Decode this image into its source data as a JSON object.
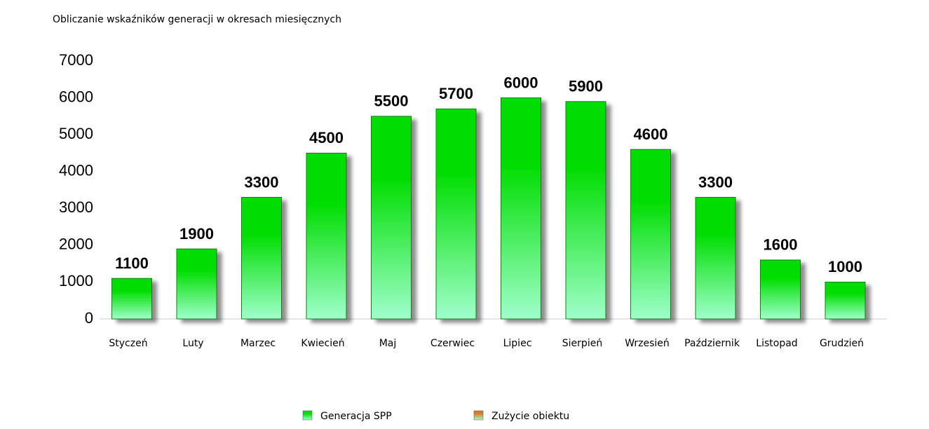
{
  "chart_data": {
    "type": "bar",
    "title": "Obliczanie wskaźników generacji w okresach miesięcznych",
    "categories": [
      "Styczeń",
      "Luty",
      "Marzec",
      "Kwiecień",
      "Maj",
      "Czerwiec",
      "Lipiec",
      "Sierpień",
      "Wrzesień",
      "Październik",
      "Listopad",
      "Grudzień"
    ],
    "series": [
      {
        "name": "Generacja SPP",
        "color": "#00dd00",
        "values": [
          1100,
          1900,
          3300,
          4500,
          5500,
          5700,
          6000,
          5900,
          4600,
          3300,
          1600,
          1000
        ]
      },
      {
        "name": "Zużycie obiektu",
        "color": "#e07820",
        "values": [
          null,
          null,
          null,
          null,
          null,
          null,
          null,
          null,
          null,
          null,
          null,
          null
        ]
      }
    ],
    "ylim": [
      0,
      7000
    ],
    "yticks": [
      0,
      1000,
      2000,
      3000,
      4000,
      5000,
      6000,
      7000
    ],
    "legend": "bottom"
  }
}
